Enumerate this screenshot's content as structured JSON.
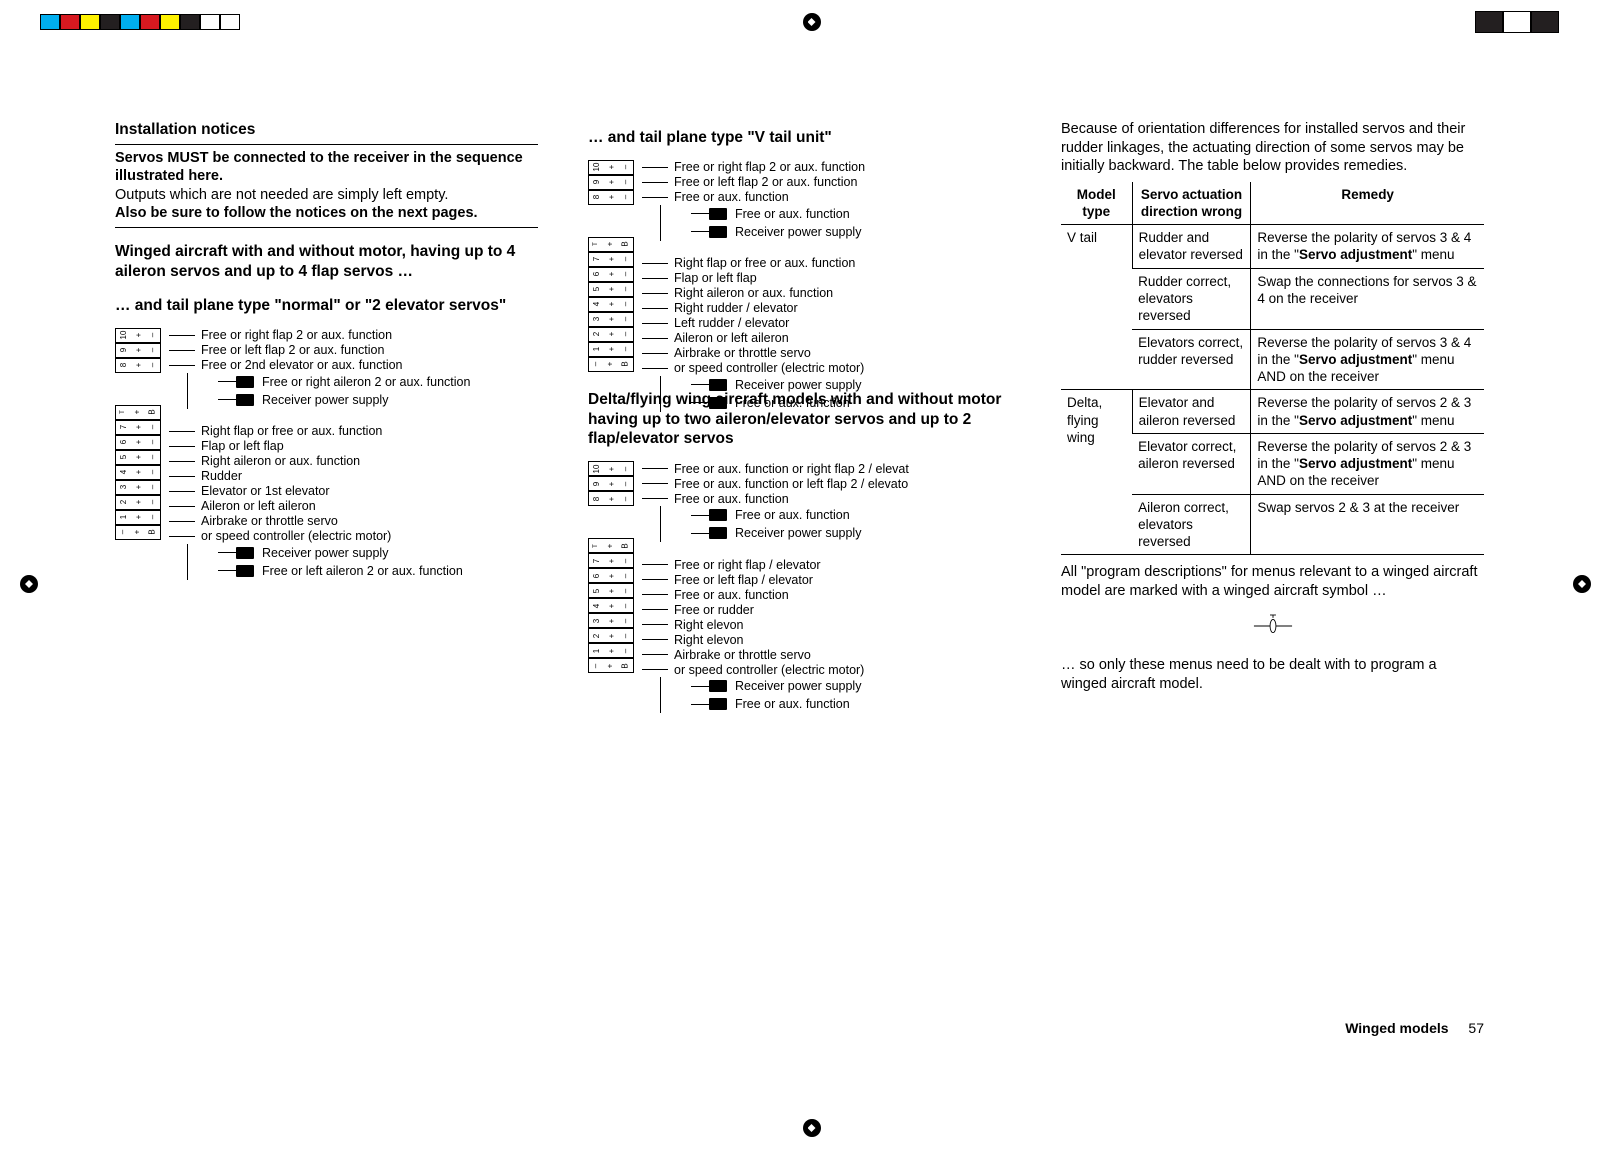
{
  "regmarks": {
    "swatch_colors": [
      "#00aeef",
      "#d71920",
      "#fff200",
      "#231f20",
      "#00aeef",
      "#d71920",
      "#fff200",
      "#231f20"
    ],
    "outline_only": [
      "#ffffff",
      "#ffffff"
    ],
    "big_swatches": [
      "#231f20",
      "#ffffff",
      "#231f20"
    ]
  },
  "col1": {
    "h_install": "Installation notices",
    "p1_bold": "Servos MUST be connected to the receiver in the sequence illustrated here.",
    "p2": "Outputs which are not needed are simply left empty.",
    "p2b": "Also be sure to follow the notices on the next pages.",
    "h_winged": "Winged aircraft with and without motor, having up to 4 aileron servos and up to 4 flap servos …",
    "h_normal": "… and tail plane type \"normal\" or \"2 elevator servos\"",
    "diagram_normal": {
      "channels": [
        {
          "n": "10",
          "t": "Free or right flap 2 or aux. function"
        },
        {
          "n": "9",
          "t": "Free or left flap 2 or aux. function"
        },
        {
          "n": "8",
          "t": "Free or 2nd elevator or aux. function"
        }
      ],
      "sub_top": [
        {
          "t": "Free or right aileron 2 or aux. function"
        },
        {
          "t": "Receiver power supply"
        }
      ],
      "telem": "T  +  B",
      "channels2": [
        {
          "n": "7",
          "t": "Right flap or free or aux. function"
        },
        {
          "n": "6",
          "t": "Flap or left flap"
        },
        {
          "n": "5",
          "t": "Right aileron or aux. function"
        },
        {
          "n": "4",
          "t": "Rudder"
        },
        {
          "n": "3",
          "t": "Elevator or 1st elevator"
        },
        {
          "n": "2",
          "t": "Aileron or left aileron"
        },
        {
          "n": "1",
          "t": "Airbrake or throttle servo"
        }
      ],
      "batt": "–  +  B",
      "sub_bot_first": "or speed controller (electric motor)",
      "sub_bot": [
        {
          "t": "Receiver power supply"
        },
        {
          "t": "Free or left aileron 2 or aux. function"
        }
      ]
    }
  },
  "col2": {
    "h_vtail": "… and tail plane type \"V tail unit\"",
    "diagram_vtail": {
      "channels": [
        {
          "n": "10",
          "t": "Free or right flap 2 or aux. function"
        },
        {
          "n": "9",
          "t": "Free or left flap 2 or aux. function"
        },
        {
          "n": "8",
          "t": "Free or aux. function"
        }
      ],
      "sub_top": [
        {
          "t": "Free or aux. function"
        },
        {
          "t": "Receiver power supply"
        }
      ],
      "telem": "T  +  B",
      "channels2": [
        {
          "n": "7",
          "t": "Right flap or free or aux. function"
        },
        {
          "n": "6",
          "t": "Flap or left flap"
        },
        {
          "n": "5",
          "t": "Right aileron or aux. function"
        },
        {
          "n": "4",
          "t": "Right rudder / elevator"
        },
        {
          "n": "3",
          "t": "Left rudder / elevator"
        },
        {
          "n": "2",
          "t": "Aileron or left aileron"
        },
        {
          "n": "1",
          "t": "Airbrake or throttle servo"
        }
      ],
      "batt": "–  +  B",
      "sub_bot_first": "or speed controller (electric motor)",
      "sub_bot": [
        {
          "t": "Receiver power supply"
        },
        {
          "t": "Free or aux. function"
        }
      ]
    },
    "h_delta": "Delta/flying wing aircraft models with and without motor having up to two aileron/elevator servos and up to 2 flap/elevator servos",
    "diagram_delta": {
      "channels": [
        {
          "n": "10",
          "t": "Free or aux. function or right flap 2 / elevat"
        },
        {
          "n": "9",
          "t": "Free or aux. function or left flap 2 / elevato"
        },
        {
          "n": "8",
          "t": "Free or aux. function"
        }
      ],
      "sub_top": [
        {
          "t": "Free or aux. function"
        },
        {
          "t": "Receiver power supply"
        }
      ],
      "telem": "T  +  B",
      "channels2": [
        {
          "n": "7",
          "t": "Free or right flap / elevator"
        },
        {
          "n": "6",
          "t": "Free or left flap / elevator"
        },
        {
          "n": "5",
          "t": "Free or aux. function"
        },
        {
          "n": "4",
          "t": "Free or rudder"
        },
        {
          "n": "3",
          "t": "Right elevon"
        },
        {
          "n": "2",
          "t": "Right elevon"
        },
        {
          "n": "1",
          "t": "Airbrake or throttle servo"
        }
      ],
      "batt": "–  +  B",
      "sub_bot_first": "or speed controller (electric motor)",
      "sub_bot": [
        {
          "t": "Receiver power supply"
        },
        {
          "t": "Free or aux. function"
        }
      ]
    }
  },
  "col3": {
    "intro": "Because of orientation differences for installed servos and their rudder linkages, the actuating direction of some servos may be initially backward. The table below provides remedies.",
    "table": {
      "head": [
        "Model type",
        "Servo actuation direction wrong",
        "Remedy"
      ],
      "rows": [
        {
          "model": "V tail",
          "rowspan": 3,
          "cells": [
            [
              "Rudder and elevator reversed",
              "Reverse the polarity of servos 3 & 4 in the \"<b>Servo adjustment</b>\" menu"
            ],
            [
              "Rudder correct, elevators reversed",
              "Swap the connections for servos 3 & 4 on the receiver"
            ],
            [
              "Elevators correct, rudder reversed",
              "Reverse the polarity of servos 3 & 4 in the \"<b>Servo adjustment</b>\" menu AND on the receiver"
            ]
          ]
        },
        {
          "model": "Delta, flying wing",
          "rowspan": 3,
          "cells": [
            [
              "Elevator and aileron reversed",
              "Reverse the polarity of servos 2 & 3 in the \"<b>Servo adjustment</b>\" menu"
            ],
            [
              "Elevator correct, aileron reversed",
              "Reverse the polarity of servos 2 & 3 in the \"<b>Servo adjustment</b>\" menu AND on the receiver"
            ],
            [
              "Aileron correct, elevators reversed",
              "Swap servos 2 & 3 at the receiver"
            ]
          ]
        }
      ]
    },
    "outro1": "All \"program descriptions\" for menus relevant to a winged aircraft model are marked with a winged aircraft symbol …",
    "outro2": "… so only these menus need to be dealt with to program a winged aircraft model.",
    "footer_label": "Winged models",
    "footer_page": "57"
  }
}
